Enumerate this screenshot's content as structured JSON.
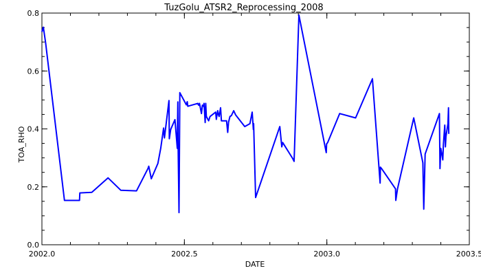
{
  "chart_data": {
    "type": "line",
    "title": "TuzGolu_ATSR2_Reprocessing_2008",
    "xlabel": "DATE",
    "ylabel": "TOA_RHO",
    "xlim": [
      2002.0,
      2003.5
    ],
    "ylim": [
      0.0,
      0.8
    ],
    "grid": false,
    "line_color": "#0000ff",
    "axis_color": "#000000",
    "x_ticks": [
      2002.0,
      2002.5,
      2003.0,
      2003.5
    ],
    "x_tick_labels": [
      "2002.0",
      "2002.5",
      "2003.0",
      "2003.5"
    ],
    "y_ticks": [
      0.0,
      0.2,
      0.4,
      0.6,
      0.8
    ],
    "y_tick_labels": [
      "0.0",
      "0.2",
      "0.4",
      "0.6",
      "0.8"
    ],
    "series": [
      {
        "x": [
          2002.0,
          2002.005,
          2002.013,
          2002.079,
          2002.132,
          2002.133,
          2002.175,
          2002.232,
          2002.277,
          2002.332,
          2002.372,
          2002.375,
          2002.384,
          2002.407,
          2002.417,
          2002.427,
          2002.43,
          2002.446,
          2002.447,
          2002.452,
          2002.467,
          2002.475,
          2002.477,
          2002.478,
          2002.481,
          2002.483,
          2002.484,
          2002.507,
          2002.51,
          2002.512,
          2002.547,
          2002.55,
          2002.553,
          2002.56,
          2002.563,
          2002.567,
          2002.569,
          2002.573,
          2002.575,
          2002.577,
          2002.585,
          2002.59,
          2002.61,
          2002.612,
          2002.617,
          2002.62,
          2002.622,
          2002.627,
          2002.63,
          2002.648,
          2002.652,
          2002.655,
          2002.66,
          2002.665,
          2002.673,
          2002.68,
          2002.712,
          2002.73,
          2002.738,
          2002.742,
          2002.743,
          2002.75,
          2002.835,
          2002.842,
          2002.845,
          2002.88,
          2002.885,
          2002.902,
          2002.998,
          2002.999,
          2003.003,
          2003.045,
          2003.101,
          2003.16,
          2003.187,
          2003.188,
          2003.192,
          2003.241,
          2003.242,
          2003.248,
          2003.305,
          2003.337,
          2003.34,
          2003.345,
          2003.395,
          2003.397,
          2003.4,
          2003.407,
          2003.409,
          2003.414,
          2003.416,
          2003.418,
          2003.425,
          2003.427,
          2003.428
        ],
        "y": [
          0.735,
          0.751,
          0.697,
          0.153,
          0.153,
          0.179,
          0.181,
          0.231,
          0.188,
          0.186,
          0.263,
          0.271,
          0.228,
          0.281,
          0.333,
          0.403,
          0.369,
          0.498,
          0.366,
          0.398,
          0.432,
          0.333,
          0.493,
          0.345,
          0.111,
          0.375,
          0.525,
          0.483,
          0.494,
          0.478,
          0.488,
          0.482,
          0.488,
          0.453,
          0.482,
          0.478,
          0.488,
          0.422,
          0.488,
          0.443,
          0.428,
          0.443,
          0.458,
          0.433,
          0.463,
          0.448,
          0.443,
          0.473,
          0.428,
          0.428,
          0.388,
          0.423,
          0.443,
          0.446,
          0.463,
          0.448,
          0.408,
          0.418,
          0.458,
          0.398,
          0.418,
          0.163,
          0.408,
          0.338,
          0.353,
          0.298,
          0.288,
          0.793,
          0.318,
          0.348,
          0.353,
          0.453,
          0.438,
          0.573,
          0.213,
          0.268,
          0.263,
          0.193,
          0.153,
          0.193,
          0.438,
          0.283,
          0.123,
          0.313,
          0.453,
          0.263,
          0.333,
          0.293,
          0.348,
          0.413,
          0.338,
          0.373,
          0.418,
          0.473,
          0.383
        ]
      }
    ]
  }
}
